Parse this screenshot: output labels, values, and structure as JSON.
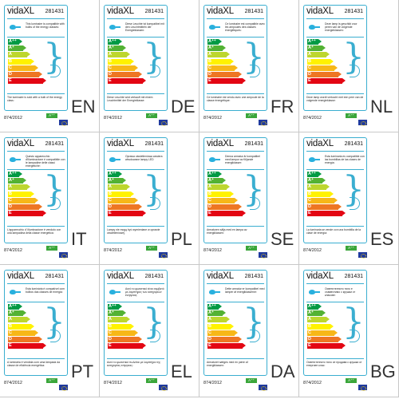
{
  "brand": "vidaXL",
  "code": "281431",
  "regulation": "874/2012",
  "class_badge": "A⁺⁺",
  "scale": [
    "A⁺⁺",
    "A⁺",
    "A",
    "B",
    "C",
    "D",
    "E"
  ],
  "colors": [
    "#009a44",
    "#53b233",
    "#bdd62e",
    "#fff200",
    "#f7b718",
    "#ee7623",
    "#e30613"
  ],
  "panels": [
    {
      "lang": "EN",
      "top": "This luminaire is compatible with bulbs of the energy classes:",
      "bottom": "The luminaire is sold with a bulb of the energy class:"
    },
    {
      "lang": "DE",
      "top": "Diese Leuchte ist kompatibel mit den Leuchtmitteln der Energieklassen:",
      "bottom": "Diese Leuchte wird verkauft mit einem Leuchtmittel der Energieklasse:"
    },
    {
      "lang": "FR",
      "top": "Ce luminaire est compatible avec les ampoules des classes énergétiques:",
      "bottom": "Ce luminaire est vendu avec une ampoule de la classe énergétique:"
    },
    {
      "lang": "NL",
      "top": "Deze lamp is geschikt voor peren van de volgende energieklassen:",
      "bottom": "Deze lamp wordt verkocht met een peer van de volgende energieklasse:"
    },
    {
      "lang": "IT",
      "top": "Questo apparecchio d'illuminazione è compatibile con le lampadine delle classi energetiche:",
      "bottom": "L'apparecchio d' illuminazione è venduto con una lampadina della classe energetica:"
    },
    {
      "lang": "PL",
      "top": "Oprawa oświetleniowa zawiera wbudowane lampy LED",
      "bottom": "Lampy nie mogą być wymieniane w oprawie oświetleniowej."
    },
    {
      "lang": "SE",
      "top": "Denna armatur är kompatibel med lampor av följande energiklasser:",
      "bottom": "Armaturen säljs med en lampa av energiklassen:"
    },
    {
      "lang": "ES",
      "top": "Esta luminaria es compatible con las bombillas de las clases de energía:",
      "bottom": "La luminaria se vende con una bombilla de la clase de energía:"
    },
    {
      "lang": "PT",
      "top": "Esta luminária é compatível com bolbos das classes de energia:",
      "bottom": "A luminária é vendida com uma lâmpada da classe de eficiência energética:"
    },
    {
      "lang": "EL",
      "top": "Αυτό το φωτιστικό είναι συμβατό με λαμπτήρες των κατηγοριών ενέργειας:",
      "bottom": "Αυτό το φωτιστικό πωλείται με λαμπτήρα της κατηγορίας ενέργειας:"
    },
    {
      "lang": "DA",
      "top": "Dette armatur er kompatibel med lamper af energiklasserne:",
      "bottom": "Armaturet sælges med en pære af energiklassen:"
    },
    {
      "lang": "BG",
      "top": "Осветителното тяло е съвместимо с крушки от класове:",
      "bottom": "Осветителното тяло се продава с крушка от енергиен клас:"
    }
  ]
}
